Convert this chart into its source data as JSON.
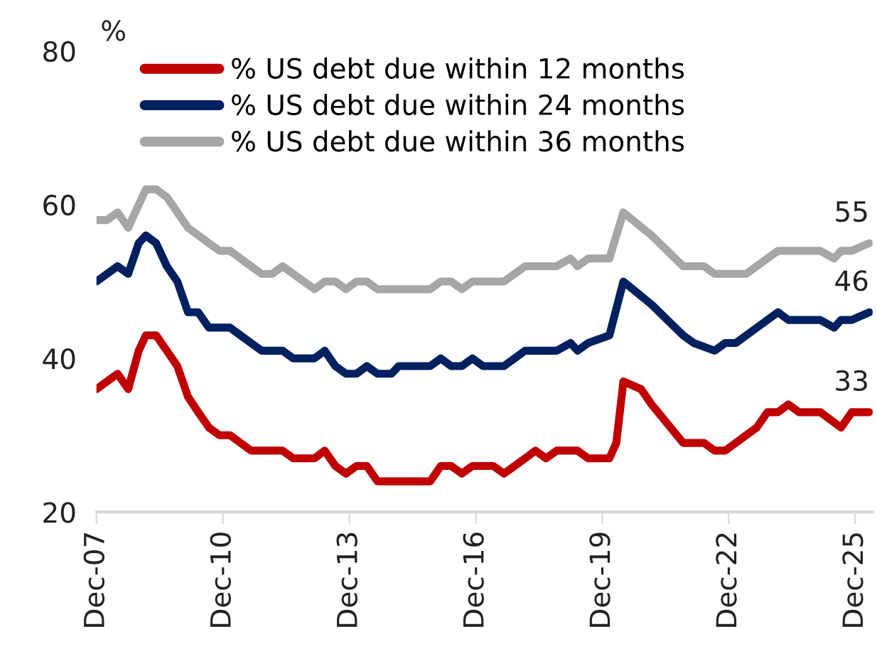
{
  "chart_data": {
    "type": "line",
    "ylabel": "%",
    "series": [
      {
        "name": "% US debt due within 12 months",
        "color": "#c00000",
        "x": [
          "2007-12",
          "2008-06",
          "2008-09",
          "2008-12",
          "2009-02",
          "2009-05",
          "2009-08",
          "2009-11",
          "2010-02",
          "2010-05",
          "2010-08",
          "2010-11",
          "2011-02",
          "2011-08",
          "2012-05",
          "2012-08",
          "2013-02",
          "2013-05",
          "2013-08",
          "2013-11",
          "2014-02",
          "2014-05",
          "2014-08",
          "2015-11",
          "2016-02",
          "2016-05",
          "2016-08",
          "2016-11",
          "2017-05",
          "2017-08",
          "2018-02",
          "2018-05",
          "2018-08",
          "2018-11",
          "2019-05",
          "2019-08",
          "2020-02",
          "2020-04",
          "2020-06",
          "2020-11",
          "2021-02",
          "2021-11",
          "2022-05",
          "2022-08",
          "2022-11",
          "2023-05",
          "2023-08",
          "2023-11",
          "2024-02",
          "2024-05",
          "2024-08",
          "2025-02",
          "2025-08",
          "2025-11",
          "2026-04"
        ],
        "values": [
          36,
          38,
          36,
          41,
          43,
          43,
          41,
          39,
          35,
          33,
          31,
          30,
          30,
          28,
          28,
          27,
          27,
          28,
          26,
          25,
          26,
          26,
          24,
          24,
          26,
          26,
          25,
          26,
          26,
          25,
          27,
          28,
          27,
          28,
          28,
          27,
          27,
          29,
          37,
          36,
          34,
          29,
          29,
          28,
          28,
          30,
          31,
          33,
          33,
          34,
          33,
          33,
          31,
          33,
          33
        ]
      },
      {
        "name": "% US debt due within 24 months",
        "color": "#002060",
        "x": [
          "2007-12",
          "2008-06",
          "2008-09",
          "2008-12",
          "2009-02",
          "2009-05",
          "2009-08",
          "2009-11",
          "2010-02",
          "2010-05",
          "2010-08",
          "2011-02",
          "2011-08",
          "2011-11",
          "2012-05",
          "2012-08",
          "2013-02",
          "2013-05",
          "2013-08",
          "2013-11",
          "2014-02",
          "2014-05",
          "2014-08",
          "2014-12",
          "2015-02",
          "2015-11",
          "2016-02",
          "2016-05",
          "2016-08",
          "2016-11",
          "2017-02",
          "2017-08",
          "2018-02",
          "2018-11",
          "2019-03",
          "2019-05",
          "2019-08",
          "2020-02",
          "2020-06",
          "2021-02",
          "2021-11",
          "2022-02",
          "2022-08",
          "2022-11",
          "2023-02",
          "2023-11",
          "2024-02",
          "2024-05",
          "2025-02",
          "2025-06",
          "2025-08",
          "2025-11",
          "2026-04"
        ],
        "values": [
          50,
          52,
          51,
          55,
          56,
          55,
          52,
          50,
          46,
          46,
          44,
          44,
          42,
          41,
          41,
          40,
          40,
          41,
          39,
          38,
          38,
          39,
          38,
          38,
          39,
          39,
          40,
          39,
          39,
          40,
          39,
          39,
          41,
          41,
          42,
          41,
          42,
          43,
          50,
          47,
          43,
          42,
          41,
          42,
          42,
          45,
          46,
          45,
          45,
          44,
          45,
          45,
          46
        ]
      },
      {
        "name": "% US debt due within 36 months",
        "color": "#a6a6a6",
        "x": [
          "2007-12",
          "2008-03",
          "2008-06",
          "2008-09",
          "2008-12",
          "2009-02",
          "2009-05",
          "2009-08",
          "2009-11",
          "2010-02",
          "2010-08",
          "2010-11",
          "2011-02",
          "2011-08",
          "2011-11",
          "2012-02",
          "2012-05",
          "2012-08",
          "2012-11",
          "2013-02",
          "2013-05",
          "2013-08",
          "2013-11",
          "2014-02",
          "2014-05",
          "2014-08",
          "2015-11",
          "2016-02",
          "2016-05",
          "2016-08",
          "2016-11",
          "2017-08",
          "2018-02",
          "2018-11",
          "2019-03",
          "2019-05",
          "2019-08",
          "2020-02",
          "2020-06",
          "2021-02",
          "2021-11",
          "2022-05",
          "2022-08",
          "2023-05",
          "2024-02",
          "2025-02",
          "2025-06",
          "2025-08",
          "2025-11",
          "2026-04"
        ],
        "values": [
          58,
          58,
          59,
          57,
          60,
          62,
          62,
          61,
          59,
          57,
          55,
          54,
          54,
          52,
          51,
          51,
          52,
          51,
          50,
          49,
          50,
          50,
          49,
          50,
          50,
          49,
          49,
          50,
          50,
          49,
          50,
          50,
          52,
          52,
          53,
          52,
          53,
          53,
          59,
          56,
          52,
          52,
          51,
          51,
          54,
          54,
          53,
          54,
          54,
          55
        ]
      }
    ],
    "ylim": [
      20,
      80
    ],
    "yticks": [
      20,
      40,
      60,
      80
    ],
    "xlim": [
      "2007-12",
      "2026-05"
    ],
    "xticks": [
      {
        "value": "2007-12",
        "label": "Dec-07"
      },
      {
        "value": "2010-12",
        "label": "Dec-10"
      },
      {
        "value": "2013-12",
        "label": "Dec-13"
      },
      {
        "value": "2016-12",
        "label": "Dec-16"
      },
      {
        "value": "2019-12",
        "label": "Dec-19"
      },
      {
        "value": "2022-12",
        "label": "Dec-22"
      },
      {
        "value": "2025-12",
        "label": "Dec-25"
      }
    ],
    "annotations": [
      {
        "text": "55",
        "x": "2026-04",
        "y": 55
      },
      {
        "text": "46",
        "x": "2026-04",
        "y": 46
      },
      {
        "text": "33",
        "x": "2026-04",
        "y": 33
      }
    ],
    "legend": "top left",
    "grid": false,
    "line_style": "solid",
    "marker": "none"
  }
}
